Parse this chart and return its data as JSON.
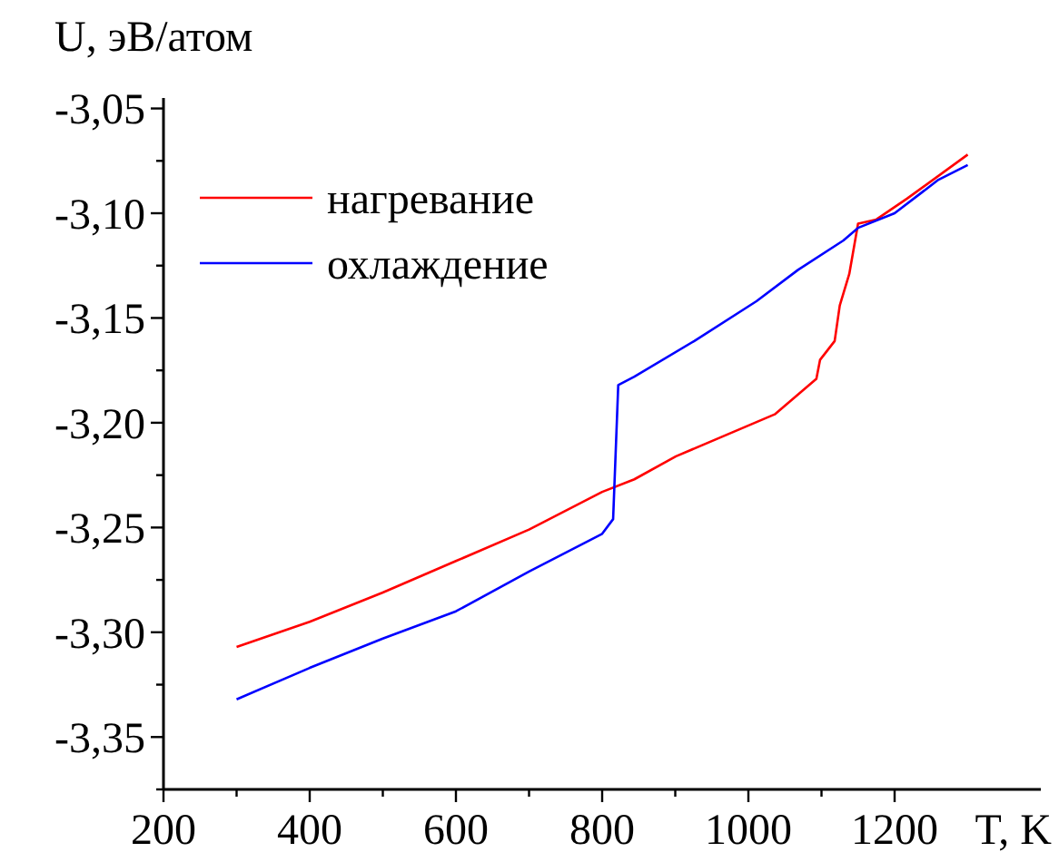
{
  "chart_data": {
    "type": "line",
    "xlabel": "T, K",
    "ylabel": "U, эВ/атом",
    "xlim": [
      200,
      1400
    ],
    "ylim": [
      -3.375,
      -3.045
    ],
    "xticks": [
      200,
      {
        "value": 300,
        "label": null
      },
      400,
      {
        "value": 500,
        "label": null
      },
      600,
      {
        "value": 700,
        "label": null
      },
      800,
      {
        "value": 900,
        "label": null
      },
      1000,
      {
        "value": 1100,
        "label": null
      },
      1200
    ],
    "yticks": [
      {
        "value": -3.375,
        "label": null
      },
      {
        "value": -3.35,
        "label": "-3,35"
      },
      {
        "value": -3.325,
        "label": null
      },
      {
        "value": -3.3,
        "label": "-3,30"
      },
      {
        "value": -3.275,
        "label": null
      },
      {
        "value": -3.25,
        "label": "-3,25"
      },
      {
        "value": -3.225,
        "label": null
      },
      {
        "value": -3.2,
        "label": "-3,20"
      },
      {
        "value": -3.175,
        "label": null
      },
      {
        "value": -3.15,
        "label": "-3,15"
      },
      {
        "value": -3.125,
        "label": null
      },
      {
        "value": -3.1,
        "label": "-3,10"
      },
      {
        "value": -3.075,
        "label": null
      },
      {
        "value": -3.05,
        "label": "-3,05"
      }
    ],
    "legend": "top left",
    "grid": false,
    "series": [
      {
        "name": "нагревание",
        "color": "#ff0000",
        "x": [
          300,
          400,
          500,
          600,
          700,
          800,
          844,
          901,
          1036,
          1093,
          1098,
          1118,
          1125,
          1138,
          1150,
          1175,
          1217,
          1300
        ],
        "values": [
          -3.307,
          -3.295,
          -3.281,
          -3.266,
          -3.251,
          -3.233,
          -3.227,
          -3.216,
          -3.196,
          -3.179,
          -3.17,
          -3.161,
          -3.144,
          -3.129,
          -3.105,
          -3.103,
          -3.093,
          -3.072
        ]
      },
      {
        "name": "охлаждение",
        "color": "#0000ff",
        "x": [
          300,
          400,
          500,
          600,
          700,
          750,
          800,
          815,
          822,
          844,
          926,
          1011,
          1068,
          1130,
          1150,
          1200,
          1260,
          1300
        ],
        "values": [
          -3.332,
          -3.317,
          -3.303,
          -3.29,
          -3.271,
          -3.262,
          -3.253,
          -3.246,
          -3.182,
          -3.178,
          -3.161,
          -3.142,
          -3.127,
          -3.113,
          -3.107,
          -3.1,
          -3.084,
          -3.077
        ]
      }
    ]
  }
}
